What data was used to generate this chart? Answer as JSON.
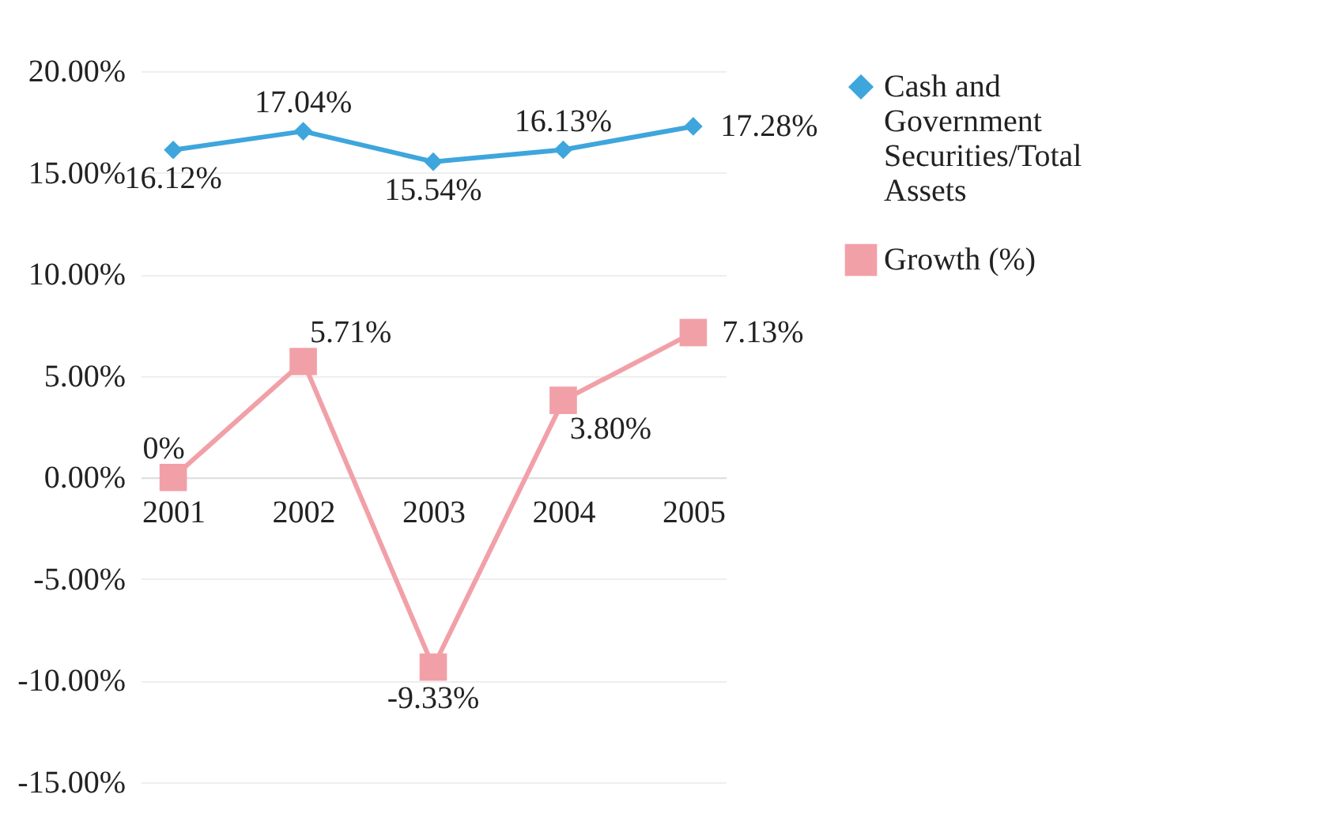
{
  "chart_data": {
    "type": "line",
    "categories": [
      "2001",
      "2002",
      "2003",
      "2004",
      "2005"
    ],
    "series": [
      {
        "name": "Cash and Government Securities/Total Assets",
        "color": "#3ea6dc",
        "values": [
          16.12,
          17.04,
          15.54,
          16.13,
          17.28
        ],
        "value_labels": [
          "16.12%",
          "17.04%",
          "15.54%",
          "16.13%",
          "17.28%"
        ],
        "marker": "diamond"
      },
      {
        "name": "Growth (%)",
        "color": "#f2a0a8",
        "values": [
          0,
          5.71,
          -9.33,
          3.8,
          7.13
        ],
        "value_labels": [
          "0%",
          "5.71%",
          "-9.33%",
          "3.80%",
          "7.13%"
        ],
        "marker": "square"
      }
    ],
    "ylim": [
      -15,
      20
    ],
    "yticks": [
      {
        "value": -15,
        "label": "-15.00%"
      },
      {
        "value": -10,
        "label": "-10.00%"
      },
      {
        "value": -5,
        "label": "-5.00%"
      },
      {
        "value": 0,
        "label": "0.00%"
      },
      {
        "value": 5,
        "label": "5.00%"
      },
      {
        "value": 10,
        "label": "10.00%"
      },
      {
        "value": 15,
        "label": "15.00%"
      },
      {
        "value": 20,
        "label": "20.00%"
      }
    ],
    "grid": "y",
    "legend": "right"
  }
}
